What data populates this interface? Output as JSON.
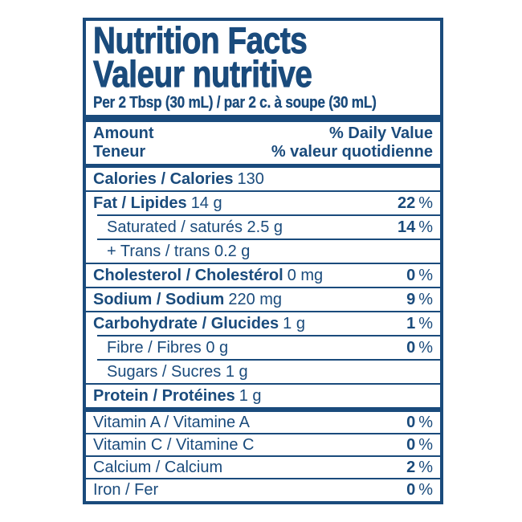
{
  "colors": {
    "accent_navy": "#1a4b7c",
    "background": "#ffffff"
  },
  "header": {
    "title_en": "Nutrition Facts",
    "title_fr": "Valeur nutritive",
    "serving_line": "Per 2 Tbsp (30 mL) / par 2 c. à soupe (30 mL)"
  },
  "columns": {
    "amount_en": "Amount",
    "amount_fr": "Teneur",
    "daily_value_en": "% Daily Value",
    "daily_value_fr": "% valeur quotidienne"
  },
  "rows": [
    {
      "name": "Calories / Calories",
      "amount": "130",
      "dv": "",
      "pct": ""
    },
    {
      "name": "Fat / Lipides",
      "amount": "14 g",
      "dv": "22",
      "pct": "%"
    },
    {
      "name": "",
      "amount": "Saturated / saturés 2.5 g",
      "dv": "14",
      "pct": "%"
    },
    {
      "name": "",
      "amount": "+ Trans / trans 0.2 g",
      "dv": "",
      "pct": ""
    },
    {
      "name": "Cholesterol / Cholestérol",
      "amount": "0 mg",
      "dv": "0",
      "pct": "%"
    },
    {
      "name": "Sodium / Sodium",
      "amount": "220 mg",
      "dv": "9",
      "pct": "%"
    },
    {
      "name": "Carbohydrate / Glucides",
      "amount": "1 g",
      "dv": "1",
      "pct": "%"
    },
    {
      "name": "",
      "amount": "Fibre / Fibres 0 g",
      "dv": "0",
      "pct": "%"
    },
    {
      "name": "",
      "amount": "Sugars / Sucres 1 g",
      "dv": "",
      "pct": ""
    },
    {
      "name": "Protein / Protéines",
      "amount": "1 g",
      "dv": "",
      "pct": ""
    }
  ],
  "micronutrients": [
    {
      "name": "Vitamin A / Vitamine A",
      "dv": "0",
      "pct": "%"
    },
    {
      "name": "Vitamin C / Vitamine C",
      "dv": "0",
      "pct": "%"
    },
    {
      "name": "Calcium / Calcium",
      "dv": "2",
      "pct": "%"
    },
    {
      "name": "Iron / Fer",
      "dv": "0",
      "pct": "%"
    }
  ]
}
